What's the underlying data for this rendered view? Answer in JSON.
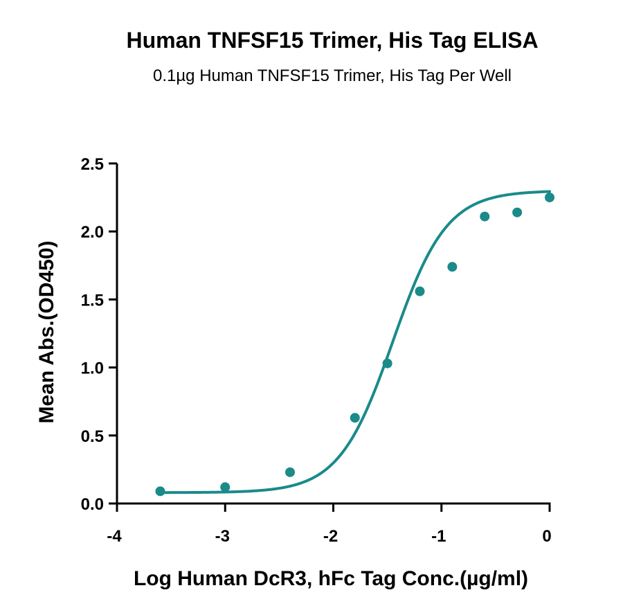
{
  "chart_data": {
    "type": "scatter",
    "title": "Human TNFSF15 Trimer, His Tag ELISA",
    "subtitle": "0.1µg Human TNFSF15 Trimer, His Tag Per Well",
    "xlabel": "Log Human DcR3, hFc Tag Conc.(µg/ml)",
    "ylabel": "Mean Abs.(OD450)",
    "xlim": [
      -4,
      0
    ],
    "ylim": [
      0,
      2.5
    ],
    "x_ticks": [
      -4,
      -3,
      -2,
      -1,
      0
    ],
    "y_ticks": [
      0.0,
      0.5,
      1.0,
      1.5,
      2.0,
      2.5
    ],
    "x_tick_labels": [
      "-4",
      "-3",
      "-2",
      "-1",
      "0"
    ],
    "y_tick_labels": [
      "0.0",
      "0.5",
      "1.0",
      "1.5",
      "2.0",
      "2.5"
    ],
    "grid": false,
    "color": "#1a8a8a",
    "series": [
      {
        "x": [
          -3.6,
          -3.0,
          -2.4,
          -1.8,
          -1.5,
          -1.2,
          -0.9,
          -0.6,
          -0.3,
          0.0
        ],
        "y": [
          0.09,
          0.12,
          0.23,
          0.63,
          1.03,
          1.56,
          1.74,
          2.11,
          2.14,
          2.25
        ]
      }
    ],
    "fit": {
      "type": "4PL",
      "bottom": 0.08,
      "top": 2.3,
      "logEC50": -1.45,
      "hill": 1.75
    }
  }
}
